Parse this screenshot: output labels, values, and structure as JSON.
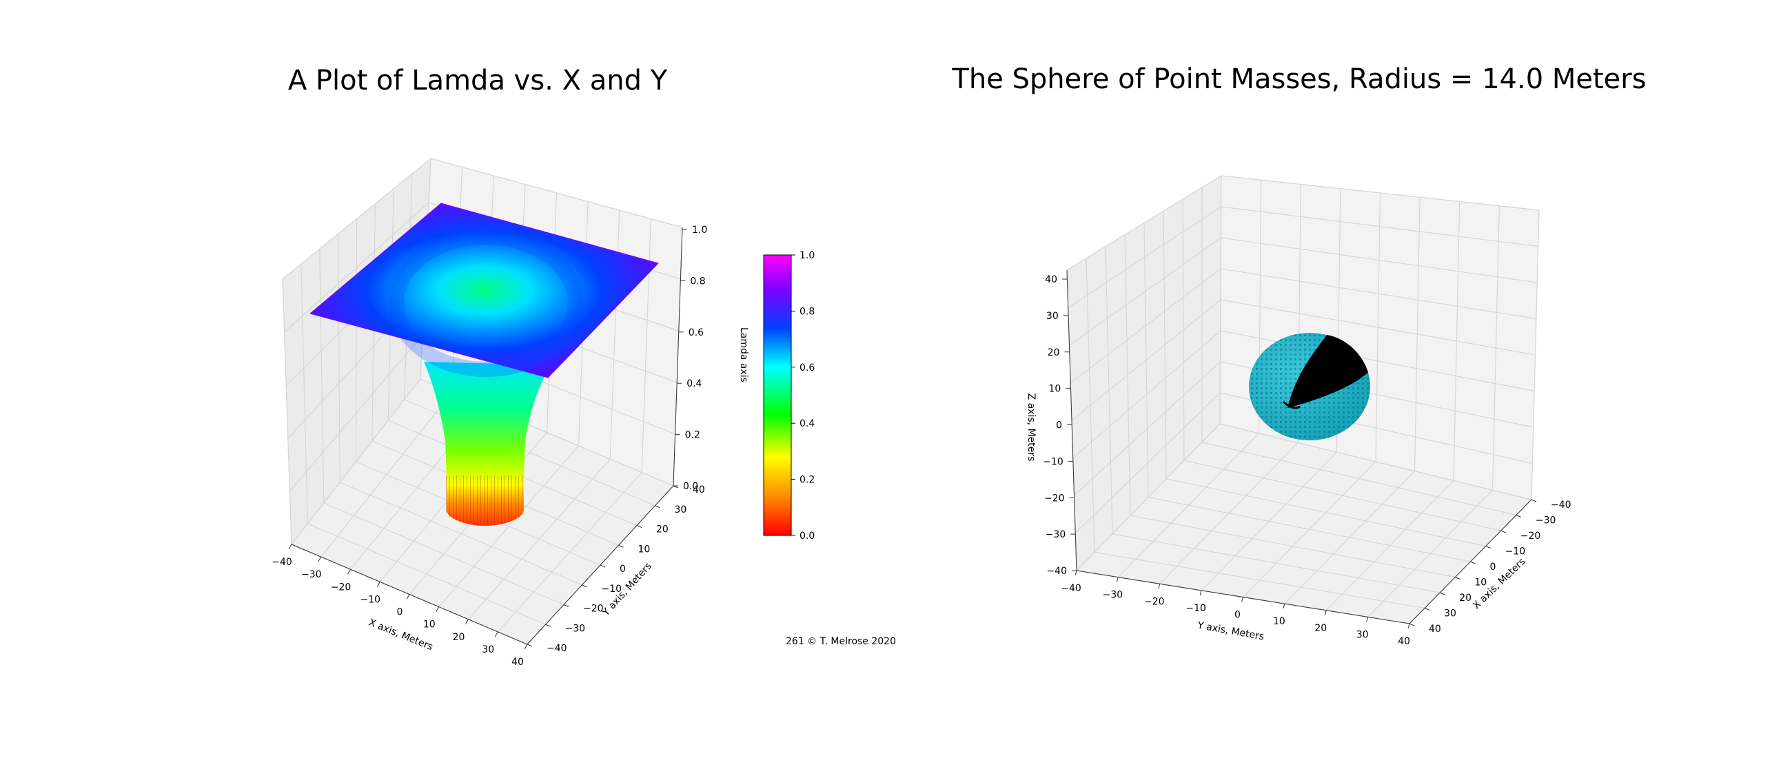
{
  "footer_note": "261  © T. Melrose 2020",
  "chart_data": [
    {
      "type": "surface3d",
      "title": "A Plot of Lamda vs. X and Y",
      "xlabel": "X axis, Meters",
      "ylabel": "Y axis, Meters",
      "zlabel": "Lamda axis",
      "xlim": [
        -40,
        40
      ],
      "ylim": [
        -40,
        40
      ],
      "zlim": [
        0,
        1
      ],
      "x_ticks": [
        "−40",
        "−30",
        "−20",
        "−10",
        "0",
        "10",
        "20",
        "30",
        "40"
      ],
      "y_ticks": [
        "−40",
        "−30",
        "−20",
        "−10",
        "0",
        "10",
        "20",
        "30",
        "40"
      ],
      "z_ticks": [
        "0.0",
        "0.2",
        "0.4",
        "0.6",
        "0.8",
        "1.0"
      ],
      "colormap": "gist_rainbow",
      "colorbar": {
        "range": [
          0,
          1
        ],
        "ticks": [
          "0.0",
          "0.2",
          "0.4",
          "0.6",
          "0.8",
          "1.0"
        ],
        "colors": [
          "#ff0000",
          "#ffa500",
          "#ffff00",
          "#00ff00",
          "#00ffff",
          "#0040ff",
          "#8000ff",
          "#ff00ff"
        ]
      },
      "surface": {
        "inner_radius": 14,
        "value_inside_min": 0.0,
        "value_at_inner_radius": 0.62,
        "value_at_corner": 0.88
      },
      "grid": true
    },
    {
      "type": "scatter3d",
      "title": "The Sphere of Point Masses, Radius = 14.0 Meters",
      "xlabel": "X axis, Meters",
      "ylabel": "Y axis, Meters",
      "zlabel": "Z axis, Meters",
      "xlim": [
        -40,
        40
      ],
      "ylim": [
        -40,
        40
      ],
      "zlim": [
        -40,
        40
      ],
      "x_ticks": [
        "−40",
        "−30",
        "−20",
        "−10",
        "0",
        "10",
        "20",
        "30",
        "40"
      ],
      "y_ticks": [
        "−40",
        "−30",
        "−20",
        "−10",
        "0",
        "10",
        "20",
        "30",
        "40"
      ],
      "z_ticks": [
        "−40",
        "−30",
        "−20",
        "−10",
        "0",
        "10",
        "20",
        "30",
        "40"
      ],
      "sphere": {
        "radius": 14.0,
        "center": [
          0,
          0,
          0
        ],
        "surface_color": "#1fb5cc",
        "cutaway_color": "#000000"
      },
      "grid": true
    }
  ]
}
